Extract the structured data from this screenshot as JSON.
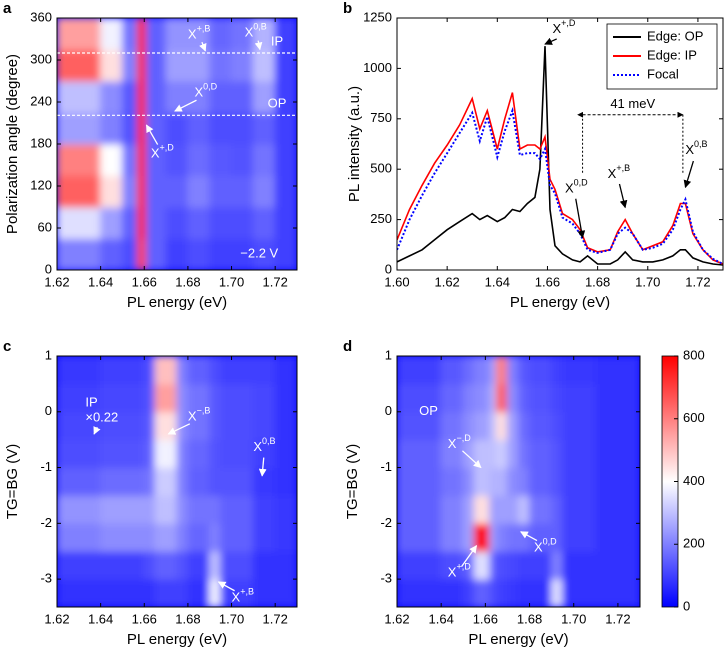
{
  "chart_data": [
    {
      "type": "heatmap",
      "panel": "a",
      "xlabel": "PL energy (eV)",
      "ylabel": "Polarization angle (degree)",
      "xlim": [
        1.62,
        1.73
      ],
      "ylim": [
        0,
        360
      ],
      "xticks": [
        1.62,
        1.64,
        1.66,
        1.68,
        {
          "value": 1.7,
          "label": "1.70"
        },
        1.72
      ],
      "yticks": [
        0,
        60,
        120,
        180,
        240,
        300,
        360
      ],
      "zlim": [
        0,
        800
      ],
      "colormap": [
        "#0000ff",
        "#ffffff",
        "#ff0000"
      ],
      "annotation_color": "#ffffff",
      "xbins": [
        1.62,
        1.63,
        1.64,
        1.65,
        1.657,
        1.661,
        1.67,
        1.68,
        1.69,
        1.7,
        1.71,
        1.72,
        1.73
      ],
      "ybins": [
        0,
        45,
        90,
        135,
        180,
        225,
        270,
        315,
        360
      ],
      "z": [
        [
          200,
          200,
          150,
          120,
          700,
          150,
          100,
          120,
          100,
          100,
          120,
          100
        ],
        [
          350,
          350,
          250,
          150,
          750,
          150,
          120,
          150,
          120,
          120,
          150,
          100
        ],
        [
          650,
          650,
          450,
          200,
          750,
          150,
          150,
          200,
          150,
          150,
          200,
          100
        ],
        [
          600,
          600,
          400,
          180,
          750,
          150,
          130,
          170,
          140,
          130,
          180,
          100
        ],
        [
          250,
          250,
          200,
          130,
          750,
          150,
          120,
          150,
          120,
          120,
          150,
          100
        ],
        [
          300,
          300,
          220,
          140,
          750,
          150,
          200,
          200,
          150,
          150,
          250,
          100
        ],
        [
          650,
          650,
          450,
          200,
          750,
          150,
          250,
          250,
          180,
          200,
          300,
          100
        ],
        [
          550,
          550,
          380,
          180,
          750,
          150,
          230,
          230,
          160,
          180,
          280,
          100
        ]
      ],
      "hlines": [
        {
          "y": 310,
          "label": "IP"
        },
        {
          "y": 221,
          "label": "OP"
        }
      ],
      "annotations": [
        {
          "text": "X",
          "sup": "+,B",
          "x": 1.68,
          "y": 335,
          "arrow_to": [
            1.688,
            313
          ]
        },
        {
          "text": "X",
          "sup": "0,B",
          "x": 1.706,
          "y": 338,
          "arrow_to": [
            1.713,
            315
          ]
        },
        {
          "text": "X",
          "sup": "0,D",
          "x": 1.683,
          "y": 252,
          "arrow_to": [
            1.674,
            227
          ]
        },
        {
          "text": "X",
          "sup": "+,D",
          "x": 1.663,
          "y": 165,
          "arrow_to": [
            1.661,
            207
          ]
        },
        {
          "text": "−2.2 V",
          "x": 1.704,
          "y": 22
        }
      ]
    },
    {
      "type": "line",
      "panel": "b",
      "xlabel": "PL energy (eV)",
      "ylabel": "PL intensity (a.u.)",
      "xlim": [
        1.6,
        1.73
      ],
      "ylim": [
        0,
        1250
      ],
      "xticks": [
        {
          "value": 1.6,
          "label": "1.60"
        },
        1.62,
        1.64,
        1.66,
        1.68,
        {
          "value": 1.7,
          "label": "1.70"
        },
        1.72
      ],
      "yticks": [
        0,
        250,
        500,
        750,
        1000,
        1250
      ],
      "legend": "top-right",
      "annotation_color": "#000000",
      "x": [
        1.6,
        1.605,
        1.61,
        1.615,
        1.62,
        1.625,
        1.63,
        1.633,
        1.636,
        1.64,
        1.643,
        1.646,
        1.649,
        1.652,
        1.655,
        1.657,
        1.659,
        1.661,
        1.663,
        1.666,
        1.67,
        1.673,
        1.676,
        1.68,
        1.685,
        1.688,
        1.691,
        1.694,
        1.698,
        1.702,
        1.706,
        1.71,
        1.713,
        1.715,
        1.718,
        1.722,
        1.726,
        1.73
      ],
      "series": [
        {
          "name": "Edge: OP",
          "color": "#000000",
          "style": "solid",
          "values": [
            40,
            70,
            100,
            150,
            200,
            240,
            280,
            250,
            270,
            240,
            260,
            300,
            290,
            330,
            360,
            500,
            1110,
            300,
            120,
            80,
            50,
            40,
            70,
            30,
            30,
            50,
            90,
            50,
            40,
            40,
            50,
            70,
            100,
            100,
            60,
            40,
            30,
            25
          ]
        },
        {
          "name": "Edge: IP",
          "color": "#ff0000",
          "style": "solid",
          "values": [
            150,
            300,
            420,
            530,
            620,
            720,
            850,
            700,
            790,
            600,
            750,
            880,
            600,
            620,
            620,
            600,
            660,
            450,
            400,
            280,
            250,
            200,
            110,
            90,
            100,
            190,
            250,
            180,
            100,
            120,
            140,
            220,
            330,
            330,
            180,
            100,
            50,
            30
          ]
        },
        {
          "name": "Focal",
          "color": "#0000ff",
          "style": "dotted",
          "values": [
            100,
            250,
            370,
            480,
            580,
            680,
            780,
            640,
            760,
            560,
            690,
            790,
            570,
            580,
            580,
            550,
            600,
            420,
            380,
            260,
            230,
            180,
            100,
            85,
            100,
            180,
            210,
            180,
            100,
            110,
            130,
            200,
            300,
            350,
            190,
            100,
            55,
            30
          ]
        }
      ],
      "bracket": {
        "text": "41 meV",
        "x1": 1.674,
        "x2": 1.714,
        "y": 770
      },
      "annotations": [
        {
          "text": "X",
          "sup": "+,D",
          "x": 1.662,
          "y": 1190,
          "arrow_to": [
            1.659,
            1120
          ]
        },
        {
          "text": "X",
          "sup": "0,D",
          "x": 1.667,
          "y": 400,
          "arrow_to": [
            1.674,
            160
          ]
        },
        {
          "text": "X",
          "sup": "+,B",
          "x": 1.684,
          "y": 470,
          "arrow_to": [
            1.691,
            310
          ]
        },
        {
          "text": "X",
          "sup": "0,B",
          "x": 1.715,
          "y": 590,
          "arrow_to": [
            1.715,
            410
          ]
        }
      ]
    },
    {
      "type": "heatmap",
      "panel": "c",
      "xlabel": "PL energy (eV)",
      "ylabel": "TG=BG (V)",
      "xlim": [
        1.62,
        1.73
      ],
      "ylim": [
        -3.5,
        1
      ],
      "xticks": [
        1.62,
        1.64,
        1.66,
        1.68,
        {
          "value": 1.7,
          "label": "1.70"
        },
        1.72
      ],
      "yticks": [
        -3,
        -2,
        -1,
        0,
        1
      ],
      "zlim": [
        0,
        800
      ],
      "colormap": [
        "#0000ff",
        "#ffffff",
        "#ff0000"
      ],
      "annotation_color": "#ffffff",
      "xbins": [
        1.62,
        1.64,
        1.66,
        1.665,
        1.675,
        1.68,
        1.69,
        1.695,
        1.71,
        1.72,
        1.73
      ],
      "ybins": [
        -3.5,
        -3,
        -2.5,
        -2,
        -1.5,
        -1,
        -0.5,
        0,
        0.5,
        1
      ],
      "z": [
        [
          80,
          80,
          80,
          100,
          100,
          80,
          380,
          100,
          80,
          80
        ],
        [
          100,
          100,
          120,
          150,
          130,
          100,
          300,
          120,
          80,
          80
        ],
        [
          200,
          220,
          220,
          250,
          200,
          160,
          200,
          150,
          100,
          90
        ],
        [
          230,
          250,
          250,
          300,
          220,
          180,
          180,
          150,
          100,
          90
        ],
        [
          150,
          170,
          180,
          320,
          200,
          150,
          130,
          130,
          90,
          80
        ],
        [
          120,
          130,
          150,
          380,
          200,
          160,
          130,
          120,
          100,
          80
        ],
        [
          110,
          120,
          140,
          450,
          220,
          180,
          140,
          120,
          110,
          80
        ],
        [
          100,
          110,
          130,
          550,
          220,
          180,
          140,
          120,
          110,
          80
        ],
        [
          90,
          100,
          120,
          500,
          200,
          150,
          120,
          100,
          100,
          80
        ]
      ],
      "annotations": [
        {
          "text": "IP",
          "x": 1.633,
          "y": 0.15
        },
        {
          "text": "×0.22",
          "x": 1.633,
          "y": -0.12,
          "arrow_to": [
            1.637,
            -0.4
          ]
        },
        {
          "text": "X",
          "sup": "−,B",
          "x": 1.68,
          "y": -0.1,
          "arrow_to": [
            1.671,
            -0.4
          ]
        },
        {
          "text": "X",
          "sup": "0,B",
          "x": 1.71,
          "y": -0.65,
          "arrow_to": [
            1.714,
            -1.15
          ]
        },
        {
          "text": "X",
          "sup": "+,B",
          "x": 1.7,
          "y": -3.35,
          "arrow_to": [
            1.694,
            -3.05
          ]
        }
      ]
    },
    {
      "type": "heatmap",
      "panel": "d",
      "xlabel": "PL energy (eV)",
      "ylabel": "TG=BG (V)",
      "xlim": [
        1.62,
        1.73
      ],
      "ylim": [
        -3.5,
        1
      ],
      "xticks": [
        1.62,
        1.64,
        1.66,
        1.68,
        {
          "value": 1.7,
          "label": "1.70"
        },
        1.72
      ],
      "yticks": [
        -3,
        -2,
        -1,
        0,
        1
      ],
      "zlim": [
        0,
        800
      ],
      "colormap": [
        "#0000ff",
        "#ffffff",
        "#ff0000"
      ],
      "annotation_color": "#ffffff",
      "colorbar_ticks": [
        0,
        200,
        400,
        600,
        800
      ],
      "xbins": [
        1.62,
        1.64,
        1.65,
        1.655,
        1.662,
        1.665,
        1.67,
        1.675,
        1.68,
        1.69,
        1.695,
        1.71,
        1.73
      ],
      "ybins": [
        -3.5,
        -3,
        -2.5,
        -2,
        -1.5,
        -1,
        -0.5,
        0,
        0.5,
        1
      ],
      "z": [
        [
          80,
          80,
          100,
          150,
          120,
          100,
          90,
          80,
          80,
          350,
          80,
          80
        ],
        [
          100,
          120,
          150,
          350,
          150,
          120,
          110,
          100,
          100,
          200,
          80,
          80
        ],
        [
          150,
          200,
          250,
          800,
          250,
          200,
          180,
          180,
          150,
          150,
          100,
          80
        ],
        [
          150,
          200,
          250,
          450,
          250,
          250,
          250,
          300,
          180,
          150,
          100,
          80
        ],
        [
          150,
          180,
          220,
          300,
          280,
          280,
          220,
          200,
          150,
          130,
          100,
          80
        ],
        [
          150,
          200,
          250,
          300,
          300,
          320,
          250,
          180,
          150,
          130,
          100,
          80
        ],
        [
          130,
          180,
          220,
          250,
          300,
          450,
          250,
          170,
          140,
          120,
          100,
          80
        ],
        [
          120,
          160,
          200,
          220,
          280,
          650,
          220,
          150,
          130,
          110,
          100,
          80
        ],
        [
          100,
          140,
          170,
          200,
          250,
          600,
          200,
          140,
          120,
          100,
          90,
          80
        ]
      ],
      "annotations": [
        {
          "text": "OP",
          "x": 1.63,
          "y": 0
        },
        {
          "text": "X",
          "sup": "−,D",
          "x": 1.643,
          "y": -0.6,
          "arrow_to": [
            1.658,
            -1.0
          ]
        },
        {
          "text": "X",
          "sup": "+,D",
          "x": 1.643,
          "y": -2.9,
          "arrow_to": [
            1.656,
            -2.4
          ]
        },
        {
          "text": "X",
          "sup": "0,D",
          "x": 1.682,
          "y": -2.45,
          "arrow_to": [
            1.676,
            -2.15
          ]
        }
      ]
    }
  ]
}
